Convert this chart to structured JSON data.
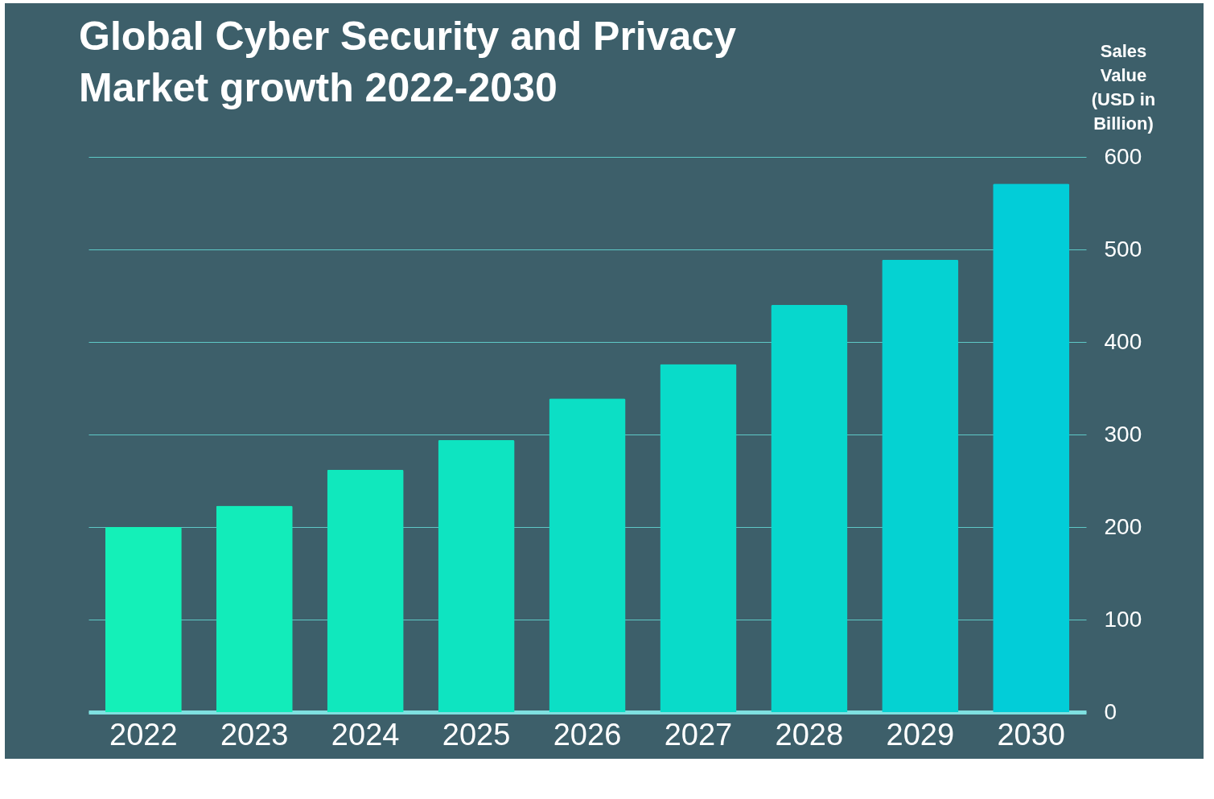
{
  "chart_data": {
    "type": "bar",
    "title": "Global Cyber Security and Privacy Market growth 2022-2030",
    "ylabel": "Sales Value (USD in Billion)",
    "categories": [
      "2022",
      "2023",
      "2024",
      "2025",
      "2026",
      "2027",
      "2028",
      "2029",
      "2030"
    ],
    "values": [
      200,
      223,
      262,
      294,
      339,
      376,
      440,
      489,
      571
    ],
    "colors": [
      "#14f0b8",
      "#12ecba",
      "#10e8bd",
      "#0ee4c1",
      "#0cdfc5",
      "#09dbc9",
      "#07d7cd",
      "#05d2d2",
      "#02cdd8"
    ],
    "ylim": [
      0,
      600
    ],
    "yticks": [
      0,
      100,
      200,
      300,
      400,
      500,
      600
    ],
    "grid": "y"
  }
}
